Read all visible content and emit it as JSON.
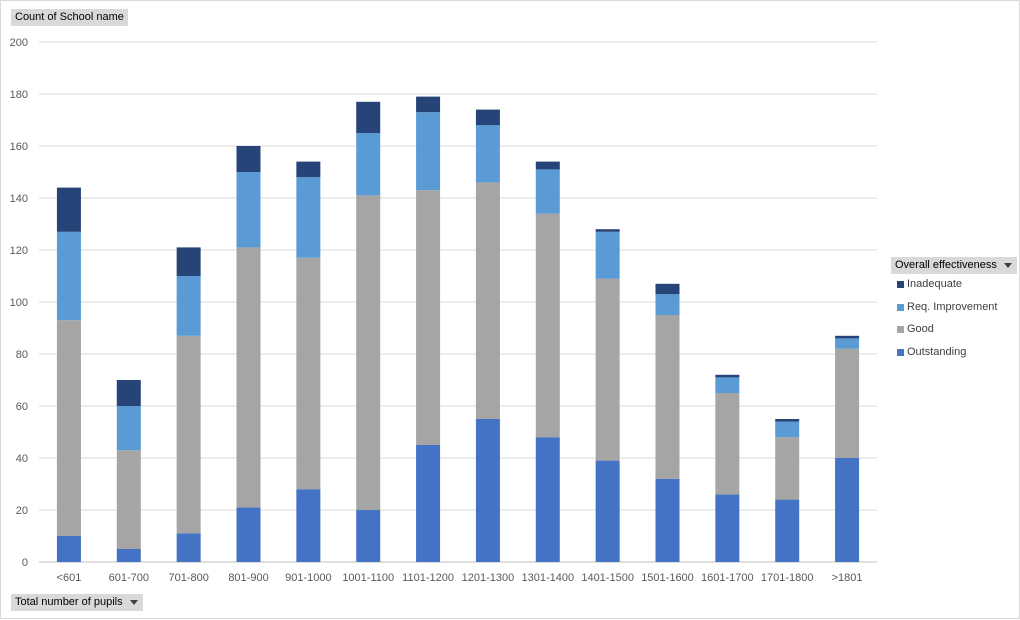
{
  "header": {
    "y_field_label": "Count of School name",
    "x_field_label": "Total number of pupils",
    "legend_field_label": "Overall effectiveness"
  },
  "icons": {
    "dropdown": "chevron-down-icon"
  },
  "chart_data": {
    "type": "bar",
    "stacked": true,
    "categories": [
      "<601",
      "601-700",
      "701-800",
      "801-900",
      "901-1000",
      "1001-1100",
      "1101-1200",
      "1201-1300",
      "1301-1400",
      "1401-1500",
      "1501-1600",
      "1601-1700",
      "1701-1800",
      ">1801"
    ],
    "series": [
      {
        "name": "Outstanding",
        "color": "#4472c4",
        "values": [
          10,
          5,
          11,
          21,
          28,
          20,
          45,
          55,
          48,
          39,
          32,
          26,
          24,
          40
        ]
      },
      {
        "name": "Good",
        "color": "#a5a5a5",
        "values": [
          83,
          38,
          76,
          100,
          89,
          121,
          98,
          91,
          86,
          70,
          63,
          39,
          24,
          42
        ]
      },
      {
        "name": "Req. Improvement",
        "color": "#5b9bd5",
        "values": [
          34,
          17,
          23,
          29,
          31,
          24,
          30,
          22,
          17,
          18,
          8,
          6,
          6,
          4
        ]
      },
      {
        "name": "Inadequate",
        "color": "#264478",
        "values": [
          17,
          10,
          11,
          10,
          6,
          12,
          6,
          6,
          3,
          1,
          4,
          1,
          1,
          1
        ]
      }
    ],
    "y_ticks": [
      0,
      20,
      40,
      60,
      80,
      100,
      120,
      140,
      160,
      180,
      200
    ],
    "ylim": [
      0,
      200
    ],
    "grid": true,
    "legend_position": "right"
  }
}
